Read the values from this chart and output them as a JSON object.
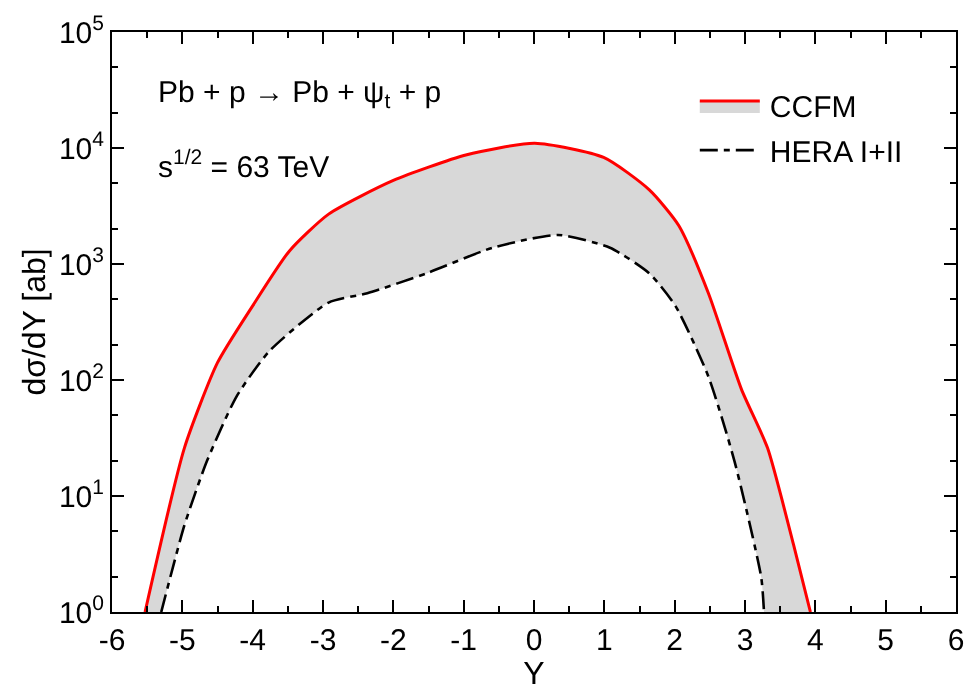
{
  "chart_data": {
    "type": "line",
    "xlabel": "Y",
    "ylabel": "dσ/dY [ab]",
    "log": "y",
    "xlim": [
      -6,
      6
    ],
    "xticks": [
      -6,
      -5,
      -4,
      -3,
      -2,
      -1,
      0,
      1,
      2,
      3,
      4,
      5,
      6
    ],
    "ylim": [
      1,
      100000
    ],
    "yticks": [
      {
        "value": 1,
        "label": "10$^{0}$"
      },
      {
        "value": 10,
        "label": "10$^{1}$"
      },
      {
        "value": 100,
        "label": "10$^{2}$"
      },
      {
        "value": 1000,
        "label": "10$^{3}$"
      },
      {
        "value": 10000,
        "label": "10$^{4}$"
      },
      {
        "value": 100000,
        "label": "10$^{5}$"
      }
    ],
    "legend": "top right",
    "annotations": [
      "Pb + p → Pb + ψ$_{t}$ + p",
      "s$^{1/2}$ = 63 TeV"
    ],
    "series": [
      {
        "name": "CCFM",
        "color": "#ff0000",
        "line_style": "solid",
        "x": [
          -5.53,
          -4.97,
          -4.5,
          -4.0,
          -3.48,
          -2.92,
          -2.0,
          -0.97,
          0.01,
          0.99,
          1.64,
          2.06,
          2.48,
          2.95,
          3.32,
          3.69,
          3.93
        ],
        "values": [
          1,
          26,
          141,
          436,
          1290,
          2690,
          5250,
          8700,
          11000,
          8300,
          4360,
          2140,
          560,
          83,
          26,
          3.8,
          1
        ]
      },
      {
        "name": "HERA I+II",
        "color": "#000000",
        "line_style": "dashdot",
        "x": [
          -5.3,
          -4.97,
          -4.65,
          -4.23,
          -3.76,
          -2.92,
          -2.37,
          -1.53,
          -0.59,
          0.34,
          1.08,
          1.64,
          2.01,
          2.48,
          2.85,
          3.23,
          3.27
        ],
        "values": [
          1,
          5.6,
          20,
          72,
          178,
          465,
          560,
          830,
          1380,
          1780,
          1380,
          830,
          436,
          107,
          20,
          2,
          1
        ]
      }
    ]
  }
}
